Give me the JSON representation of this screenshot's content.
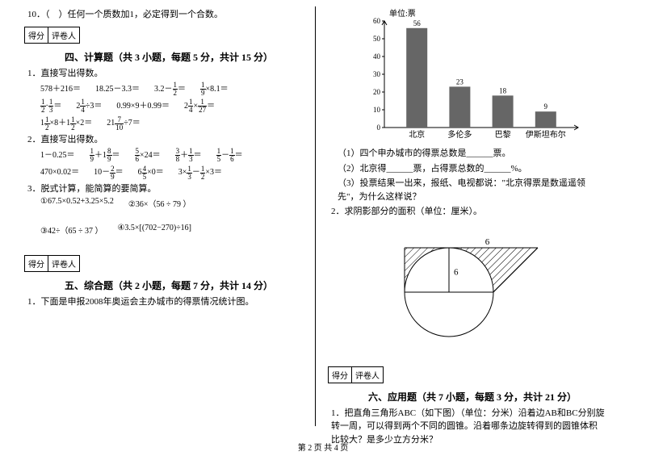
{
  "q10": "10．（　）任何一个质数加1，必定得到一个合数。",
  "scorebox": {
    "a": "得分",
    "b": "评卷人"
  },
  "sec4_title": "四、计算题（共 3 小题，每题 5 分，共计 15 分）",
  "s4_q1": "1．直接写出得数。",
  "s4_q1_r1": {
    "a": "578＋216＝",
    "b": "18.25－3.3＝",
    "c": "3.2－½＝",
    "d": "⅑×8.1＝"
  },
  "s4_q1_r2": {
    "a": "½·⅓＝",
    "b": "2¼÷3＝",
    "c": "0.99×9＋0.99＝",
    "d": "2¼×1/27＝"
  },
  "s4_q1_r3": {
    "a": "1½×8＋1½×2＝",
    "b": "21 7/10÷7＝"
  },
  "s4_q2": "2．直接写出得数。",
  "s4_q2_r1": {
    "a": "1－0.25＝",
    "b": "⅑＋1⁸⁄₉＝",
    "c": "⁵⁄₆×24＝",
    "d": "⅜＋⅓＝",
    "e": "⅕－⅙＝"
  },
  "s4_q2_r2": {
    "a": "470×0.02＝",
    "b": "10－²⁄₉＝",
    "c": "6⁴⁄₅×0＝",
    "d": "3×⅓－½×3＝"
  },
  "s4_q3": "3．脱式计算，能简算的要简算。",
  "s4_q3_a": "①67.5×0.52+3.25×5.2",
  "s4_q3_b": "②36×（56 ÷ 79 ）",
  "s4_q3_c": "③42÷（65 ÷ 37 ）",
  "s4_q3_d": "④3.5×[(702−270)÷16]",
  "sec5_title": "五、综合题（共 2 小题，每题 7 分，共计 14 分）",
  "s5_q1": "1．下面是申报2008年奥运会主办城市的得票情况统计图。",
  "chart": {
    "ylabel": "单位:票",
    "ymax": 60,
    "ystep": 10,
    "bars": [
      {
        "label": "北京",
        "value": 56,
        "color": "#666666"
      },
      {
        "label": "多伦多",
        "value": 23,
        "color": "#666666"
      },
      {
        "label": "巴黎",
        "value": 18,
        "color": "#666666"
      },
      {
        "label": "伊斯坦布尔",
        "value": 9,
        "color": "#666666"
      }
    ],
    "axis_color": "#000000",
    "grid_color": "#d0d0d0",
    "bg": "#ffffff",
    "font_size": 10
  },
  "s5_q1_1": "（1）四个申办城市的得票总数是______票。",
  "s5_q1_2": "（2）北京得______票，占得票总数的______%。",
  "s5_q1_3": "（3）投票结果一出来，报纸、电视都说：\"北京得票是数遥遥领先\"，为什么这样说？",
  "s5_q2": "2．求阴影部分的面积（单位：厘米）。",
  "shape": {
    "type": "circle+triangle",
    "radius": 6,
    "top_label": "6",
    "side_label": "6",
    "hatch_color": "#000000",
    "stroke": "#000000",
    "fill": "#ffffff"
  },
  "sec6_title": "六、应用题（共 7 小题，每题 3 分，共计 21 分）",
  "s6_q1": "1．把直角三角形ABC（如下图）（单位：分米）沿着边AB和BC分别旋转一周，可以得到两个不同的圆锥。沿着哪条边旋转得到的圆锥体积比较大？是多少立方分米？",
  "footer": "第 2 页 共 4 页"
}
